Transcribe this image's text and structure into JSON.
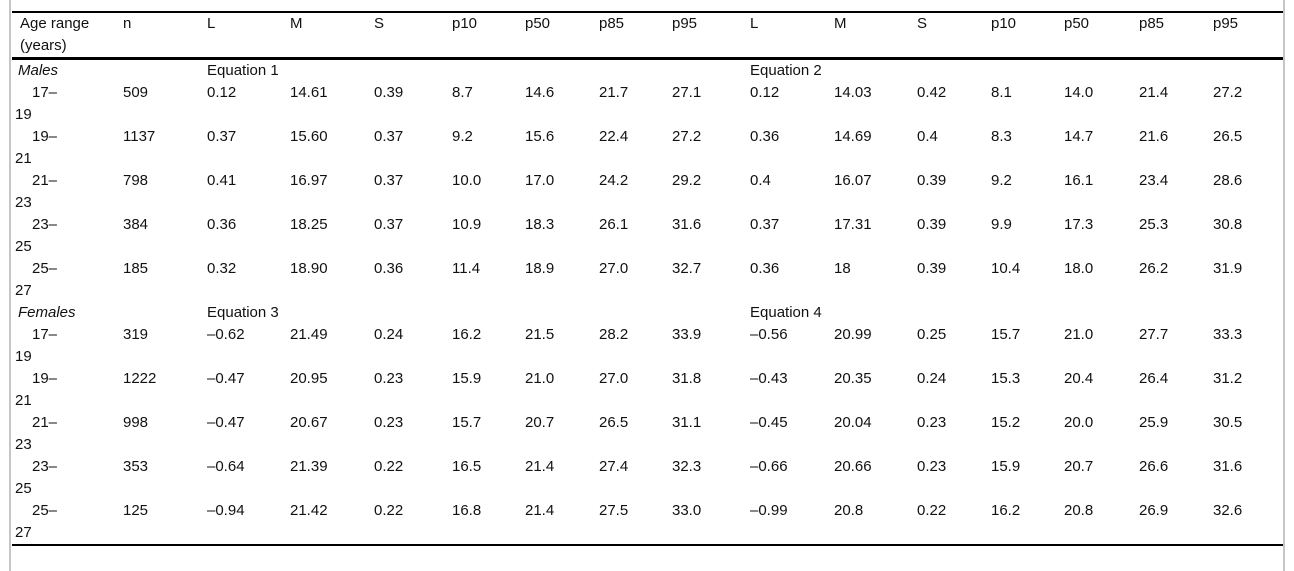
{
  "table": {
    "header": {
      "age_col_line1": "Age range",
      "age_col_line2": "(years)",
      "cols": [
        "n",
        "L",
        "M",
        "S",
        "p10",
        "p50",
        "p85",
        "p95",
        "L",
        "M",
        "S",
        "p10",
        "p50",
        "p85",
        "p95"
      ]
    },
    "sections": [
      {
        "label": "Males",
        "eq_left": "Equation 1",
        "eq_right": "Equation 2",
        "rows": [
          {
            "age1": "17–",
            "age2": "19",
            "n": "509",
            "cells": [
              "0.12",
              "14.61",
              "0.39",
              "8.7",
              "14.6",
              "21.7",
              "27.1",
              "0.12",
              "14.03",
              "0.42",
              "8.1",
              "14.0",
              "21.4",
              "27.2"
            ]
          },
          {
            "age1": "19–",
            "age2": "21",
            "n": "1137",
            "cells": [
              "0.37",
              "15.60",
              "0.37",
              "9.2",
              "15.6",
              "22.4",
              "27.2",
              "0.36",
              "14.69",
              "0.4",
              "8.3",
              "14.7",
              "21.6",
              "26.5"
            ]
          },
          {
            "age1": "21–",
            "age2": "23",
            "n": "798",
            "cells": [
              "0.41",
              "16.97",
              "0.37",
              "10.0",
              "17.0",
              "24.2",
              "29.2",
              "0.4",
              "16.07",
              "0.39",
              "9.2",
              "16.1",
              "23.4",
              "28.6"
            ]
          },
          {
            "age1": "23–",
            "age2": "25",
            "n": "384",
            "cells": [
              "0.36",
              "18.25",
              "0.37",
              "10.9",
              "18.3",
              "26.1",
              "31.6",
              "0.37",
              "17.31",
              "0.39",
              "9.9",
              "17.3",
              "25.3",
              "30.8"
            ]
          },
          {
            "age1": "25–",
            "age2": "27",
            "n": "185",
            "cells": [
              "0.32",
              "18.90",
              "0.36",
              "11.4",
              "18.9",
              "27.0",
              "32.7",
              "0.36",
              "18",
              "0.39",
              "10.4",
              "18.0",
              "26.2",
              "31.9"
            ]
          }
        ]
      },
      {
        "label": "Females",
        "eq_left": "Equation 3",
        "eq_right": "Equation 4",
        "rows": [
          {
            "age1": "17–",
            "age2": "19",
            "n": "319",
            "cells": [
              "–0.62",
              "21.49",
              "0.24",
              "16.2",
              "21.5",
              "28.2",
              "33.9",
              "–0.56",
              "20.99",
              "0.25",
              "15.7",
              "21.0",
              "27.7",
              "33.3"
            ]
          },
          {
            "age1": "19–",
            "age2": "21",
            "n": "1222",
            "cells": [
              "–0.47",
              "20.95",
              "0.23",
              "15.9",
              "21.0",
              "27.0",
              "31.8",
              "–0.43",
              "20.35",
              "0.24",
              "15.3",
              "20.4",
              "26.4",
              "31.2"
            ]
          },
          {
            "age1": "21–",
            "age2": "23",
            "n": "998",
            "cells": [
              "–0.47",
              "20.67",
              "0.23",
              "15.7",
              "20.7",
              "26.5",
              "31.1",
              "–0.45",
              "20.04",
              "0.23",
              "15.2",
              "20.0",
              "25.9",
              "30.5"
            ]
          },
          {
            "age1": "23–",
            "age2": "25",
            "n": "353",
            "cells": [
              "–0.64",
              "21.39",
              "0.22",
              "16.5",
              "21.4",
              "27.4",
              "32.3",
              "–0.66",
              "20.66",
              "0.23",
              "15.9",
              "20.7",
              "26.6",
              "31.6"
            ]
          },
          {
            "age1": "25–",
            "age2": "27",
            "n": "125",
            "cells": [
              "–0.94",
              "21.42",
              "0.22",
              "16.8",
              "21.4",
              "27.5",
              "33.0",
              "–0.99",
              "20.8",
              "0.22",
              "16.2",
              "20.8",
              "26.9",
              "32.6"
            ]
          }
        ]
      }
    ]
  }
}
